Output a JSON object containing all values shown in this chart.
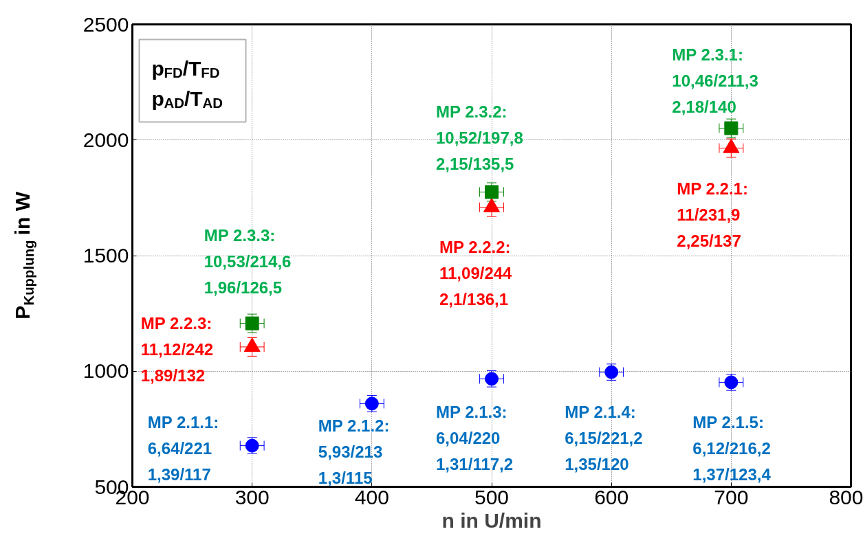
{
  "chart_data": {
    "type": "scatter",
    "xlabel": "n in U/min",
    "ylabel": "P$_{Kupplung}$ in W",
    "xlim": [
      200,
      800
    ],
    "xticks": [
      200,
      300,
      400,
      500,
      600,
      700,
      800
    ],
    "ylim": [
      500,
      2500
    ],
    "yticks": [
      500,
      1000,
      1500,
      2000,
      2500
    ],
    "grid": true,
    "series": [
      {
        "color": "#0000ff",
        "marker": "circle",
        "x": [
          300,
          400,
          500,
          600,
          700
        ],
        "values": [
          678,
          860,
          967,
          996,
          952
        ],
        "errors": [
          35,
          35,
          35,
          35,
          35
        ],
        "xerrors": [
          10,
          10,
          10,
          10,
          10
        ]
      },
      {
        "color": "#ff0000",
        "marker": "triangle",
        "x": [
          300,
          500,
          700
        ],
        "values": [
          1105,
          1709,
          1965
        ],
        "errors": [
          40,
          40,
          40
        ],
        "xerrors": [
          10,
          10,
          10
        ]
      },
      {
        "color": "#008000",
        "marker": "square",
        "x": [
          300,
          500,
          700
        ],
        "values": [
          1207,
          1775,
          2051
        ],
        "errors": [
          40,
          40,
          40
        ],
        "xerrors": [
          10,
          10,
          10
        ]
      }
    ],
    "annotations": [
      "p$_{FD}$/T$_{FD}$\np$_{AD}$/T$_{AD}$",
      {
        "text": "MP 2.1.1:\n6,64/221\n1,39/117",
        "x": 300,
        "y": 678
      },
      {
        "text": "MP 2.1.2:\n5,93/213\n1,3/115",
        "x": 400,
        "y": 860
      },
      {
        "text": "MP 2.1.3:\n6,04/220\n1,31/117,2",
        "x": 500,
        "y": 967
      },
      {
        "text": "MP 2.1.4:\n6,15/221,2\n1,35/120",
        "x": 600,
        "y": 996
      },
      {
        "text": "MP 2.1.5:\n6,12/216,2\n1,37/123,4",
        "x": 700,
        "y": 952
      },
      {
        "text": "MP 2.2.3:\n11,12/242\n1,89/132",
        "x": 300,
        "y": 1105
      },
      {
        "text": "MP 2.2.2:\n11,09/244\n2,1/136,1",
        "x": 500,
        "y": 1709
      },
      {
        "text": "MP 2.2.1:\n11/231,9\n2,25/137",
        "x": 700,
        "y": 1965
      },
      {
        "text": "MP 2.3.3:\n10,53/214,6\n1,96/126,5",
        "x": 300,
        "y": 1207
      },
      {
        "text": "MP 2.3.2:\n10,52/197,8\n2,15/135,5",
        "x": 500,
        "y": 1775
      },
      {
        "text": "MP 2.3.1:\n10,46/211,3\n2,18/140",
        "x": 700,
        "y": 2051
      }
    ]
  }
}
